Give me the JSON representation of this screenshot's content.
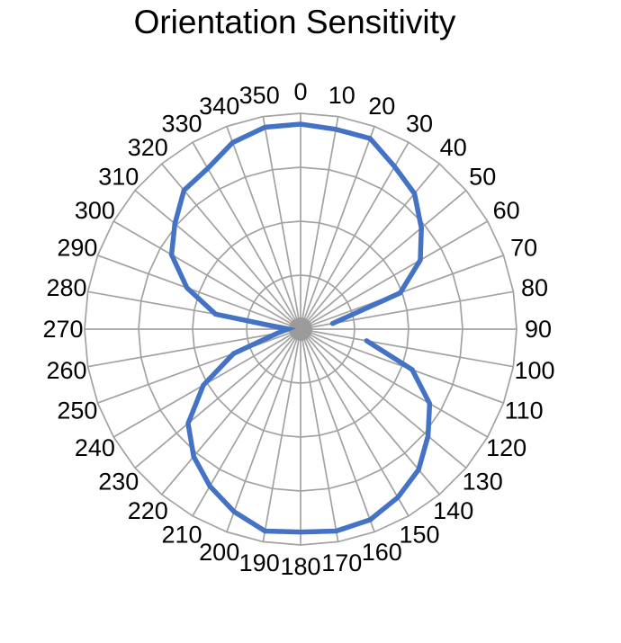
{
  "title": "Orientation Sensitivity",
  "chart_data": {
    "type": "line",
    "subtype": "polar-radar",
    "title": "Orientation Sensitivity",
    "angle_unit": "degrees",
    "angle_direction": "clockwise-from-top",
    "categories": [
      0,
      10,
      20,
      30,
      40,
      50,
      60,
      70,
      80,
      90,
      100,
      110,
      120,
      130,
      140,
      150,
      160,
      170,
      180,
      190,
      200,
      210,
      220,
      230,
      240,
      250,
      260,
      270,
      280,
      290,
      300,
      310,
      320,
      330,
      340,
      350
    ],
    "series": [
      {
        "name": "Orientation Sensitivity",
        "color": "#4472C4",
        "values": [
          0.95,
          0.94,
          0.94,
          0.87,
          0.82,
          0.73,
          0.64,
          0.49,
          0.15,
          null,
          0.31,
          0.55,
          0.69,
          0.77,
          0.85,
          0.9,
          0.94,
          0.95,
          0.94,
          0.95,
          0.9,
          0.84,
          0.77,
          0.68,
          0.52,
          0.33,
          0.11,
          0.06,
          0.4,
          0.56,
          0.69,
          0.76,
          0.84,
          0.86,
          0.92,
          0.95
        ],
        "gap_at_angles": [
          90
        ]
      }
    ],
    "radial_axis": {
      "min": 0,
      "max": 1.0,
      "rings": [
        0.25,
        0.5,
        0.75,
        1.0
      ],
      "tick_labels_visible": false
    },
    "grid": {
      "visible": true,
      "spoke_step_deg": 10,
      "ring_shape": "polygon-36",
      "color": "#a2a2a2"
    },
    "legend": "none",
    "background": "#ffffff",
    "label_color": "#000000"
  }
}
